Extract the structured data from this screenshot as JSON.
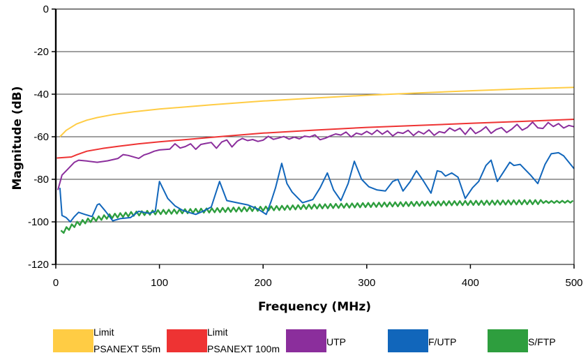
{
  "chart_data": {
    "type": "line",
    "title": "",
    "xlabel": "Frequency (MHz)",
    "ylabel": "Magnitude (dB)",
    "xlim": [
      0,
      500
    ],
    "ylim": [
      -120,
      0
    ],
    "x_ticks": [
      "0",
      "100",
      "200",
      "300",
      "400",
      "500"
    ],
    "y_ticks": [
      "0",
      "-20",
      "-40",
      "-60",
      "-80",
      "-100",
      "-120"
    ],
    "grid": "horizontal",
    "legend_position": "bottom",
    "series": [
      {
        "name": "Limit PSANEXT 55m",
        "legend_lines": [
          "Limit",
          "PSANEXT 55m"
        ],
        "color": "#FFCC44",
        "style": "smooth",
        "x": [
          4,
          10,
          20,
          30,
          40,
          55,
          75,
          100,
          150,
          200,
          250,
          300,
          350,
          400,
          450,
          500
        ],
        "y": [
          -60,
          -57,
          -54,
          -52.2,
          -51,
          -49.6,
          -48.3,
          -47,
          -45,
          -43.2,
          -41.8,
          -40.5,
          -39.4,
          -38.4,
          -37.5,
          -36.8
        ]
      },
      {
        "name": "Limit PSANEXT 100m",
        "legend_lines": [
          "Limit",
          "PSANEXT 100m"
        ],
        "color": "#EE3333",
        "style": "smooth",
        "x": [
          1,
          15,
          20,
          30,
          45,
          60,
          80,
          100,
          150,
          200,
          250,
          300,
          350,
          400,
          450,
          500
        ],
        "y": [
          -70,
          -69.5,
          -68.5,
          -66.8,
          -65.5,
          -64.5,
          -63.3,
          -62.4,
          -60.3,
          -58.3,
          -56.9,
          -55.6,
          -54.7,
          -53.7,
          -52.8,
          -51.8
        ]
      },
      {
        "name": "UTP",
        "legend_lines": [
          "UTP"
        ],
        "color": "#8B2E9C",
        "style": "polyline",
        "x": [
          2,
          6,
          10,
          14,
          18,
          22,
          30,
          40,
          50,
          60,
          65,
          70,
          80,
          85,
          90,
          95,
          100,
          110,
          115,
          120,
          125,
          130,
          135,
          140,
          145,
          150,
          155,
          160,
          165,
          170,
          175,
          180,
          185,
          190,
          195,
          200,
          205,
          210,
          215,
          220,
          225,
          230,
          235,
          240,
          245,
          250,
          255,
          260,
          265,
          270,
          275,
          280,
          285,
          290,
          295,
          300,
          305,
          310,
          315,
          320,
          325,
          330,
          335,
          340,
          345,
          350,
          355,
          360,
          365,
          370,
          375,
          380,
          385,
          390,
          395,
          400,
          405,
          410,
          415,
          420,
          425,
          430,
          435,
          440,
          445,
          450,
          455,
          460,
          465,
          470,
          475,
          480,
          485,
          490,
          495,
          500
        ],
        "y": [
          -85,
          -78,
          -76,
          -74,
          -72,
          -71,
          -71.4,
          -72,
          -71.3,
          -70.2,
          -68.4,
          -68.8,
          -70.2,
          -68.6,
          -67.8,
          -66.8,
          -66.2,
          -65.8,
          -63.3,
          -65.3,
          -64.6,
          -63.3,
          -65.9,
          -63.6,
          -63.1,
          -62.7,
          -65.4,
          -62.5,
          -61.5,
          -64.8,
          -62.1,
          -60.8,
          -61.8,
          -61.3,
          -62.2,
          -61.6,
          -59.8,
          -61.2,
          -60.6,
          -59.9,
          -61.1,
          -60.2,
          -61.0,
          -59.7,
          -60.1,
          -59.1,
          -61.4,
          -60.7,
          -59.6,
          -58.7,
          -59.2,
          -57.8,
          -60.1,
          -58.3,
          -59.0,
          -57.5,
          -58.9,
          -56.9,
          -58.8,
          -57.2,
          -59.6,
          -57.9,
          -58.4,
          -57.0,
          -59.4,
          -57.5,
          -58.7,
          -56.8,
          -59.3,
          -57.6,
          -58.2,
          -55.9,
          -57.3,
          -56.0,
          -58.9,
          -55.8,
          -58.5,
          -57.2,
          -55.3,
          -58.4,
          -56.6,
          -55.7,
          -58.0,
          -56.4,
          -54.2,
          -56.9,
          -55.6,
          -53.1,
          -55.8,
          -56.1,
          -53.3,
          -55.2,
          -53.8,
          -55.9,
          -54.7,
          -55.3
        ]
      },
      {
        "name": "F/UTP",
        "legend_lines": [
          "F/UTP"
        ],
        "color": "#1166BB",
        "style": "polyline",
        "x": [
          4,
          6,
          10,
          14,
          18,
          22,
          28,
          35,
          40,
          42,
          48,
          55,
          62,
          72,
          80,
          90,
          96,
          100,
          108,
          115,
          122,
          128,
          135,
          142,
          150,
          158,
          165,
          175,
          185,
          195,
          203,
          208,
          212,
          218,
          223,
          228,
          238,
          248,
          255,
          262,
          268,
          275,
          282,
          288,
          295,
          302,
          310,
          318,
          325,
          330,
          335,
          342,
          348,
          355,
          362,
          368,
          372,
          376,
          382,
          388,
          395,
          402,
          408,
          415,
          420,
          426,
          432,
          438,
          442,
          448,
          452,
          458,
          465,
          472,
          478,
          485,
          490,
          500
        ],
        "y": [
          -84,
          -97,
          -98,
          -100,
          -97.5,
          -95.5,
          -96.5,
          -97.5,
          -92,
          -91.5,
          -95,
          -99.5,
          -98.5,
          -98,
          -95,
          -96,
          -95,
          -81,
          -89,
          -92.5,
          -94.5,
          -95.5,
          -96.5,
          -95,
          -93,
          -81,
          -90,
          -91,
          -92,
          -94,
          -96.5,
          -90,
          -84,
          -72.5,
          -82,
          -86,
          -91,
          -89.5,
          -84,
          -77,
          -85,
          -90,
          -82,
          -71.5,
          -80,
          -83.5,
          -85,
          -85.5,
          -81,
          -80,
          -85.5,
          -81,
          -76,
          -81,
          -86.5,
          -76,
          -76.5,
          -78.5,
          -77,
          -79,
          -89,
          -84,
          -81,
          -73.5,
          -71,
          -81,
          -76.5,
          -72,
          -73.5,
          -73,
          -75,
          -78,
          -82,
          -73,
          -68,
          -67.5,
          -69,
          -75
        ]
      },
      {
        "name": "S/FTP",
        "legend_lines": [
          "S/FTP"
        ],
        "color": "#2E9E3E",
        "style": "sawtooth",
        "x": [
          5,
          10,
          20,
          30,
          50,
          75,
          100,
          150,
          200,
          250,
          300,
          350,
          400,
          450,
          500
        ],
        "y": [
          -105,
          -103.5,
          -101,
          -99.5,
          -97.5,
          -96.2,
          -95.4,
          -94.6,
          -93.8,
          -92.8,
          -92.1,
          -91.5,
          -91.1,
          -90.8,
          -90.5
        ]
      }
    ]
  }
}
